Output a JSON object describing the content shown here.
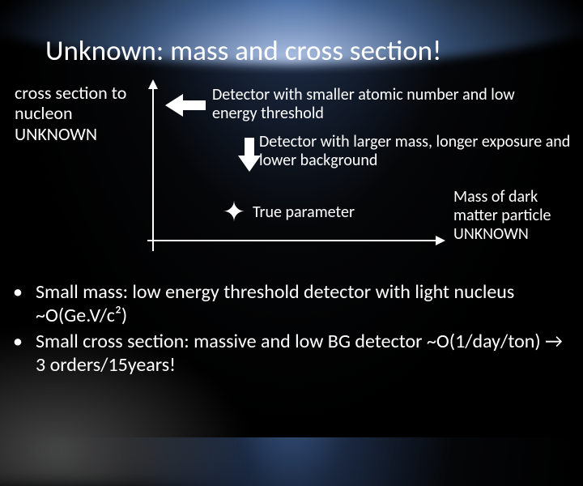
{
  "title": "Unknown: mass and cross section!",
  "ylabel": "cross section to nucleon UNKNOWN",
  "annotations": {
    "left": "Detector with smaller atomic number and  low energy threshold",
    "down": "Detector with larger mass, longer exposure and lower background",
    "true_param": "True parameter"
  },
  "xlabel": "Mass of dark matter particle UNKNOWN",
  "bullets": [
    "Small mass: low energy threshold detector with light nucleus ~O(Ge.V/c²)",
    "Small cross section: massive and low BG detector ~O(1/day/ton) → 3 orders/15years!"
  ],
  "colors": {
    "text": "#ffffff",
    "axis": "#ffffff",
    "arrow": "#ffffff",
    "bg_top": "#3a5a8a",
    "bg_mid": "#050608",
    "bg_bottom": "#000000"
  },
  "fontsizes": {
    "title": 35,
    "label": 22,
    "annotation": 20,
    "bullet": 24
  },
  "chart": {
    "type": "schematic-axes",
    "arrows": [
      "left",
      "down"
    ],
    "marker": "four-point-star"
  }
}
